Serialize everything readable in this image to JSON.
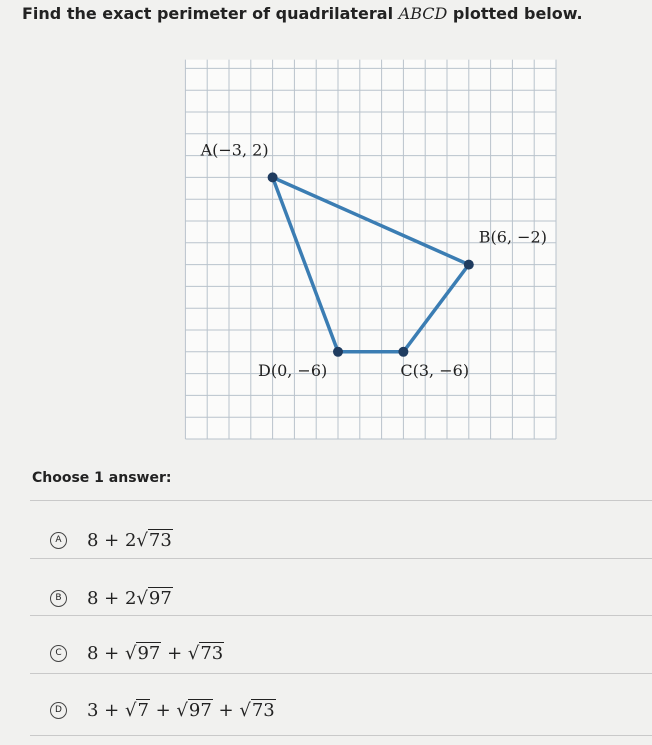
{
  "question": {
    "parts": [
      {
        "text": "Find the exact perimeter of quadrilateral "
      },
      {
        "italic": "ABCD"
      },
      {
        "text": " plotted below."
      }
    ]
  },
  "graph": {
    "points": [
      {
        "label": "A(−3, 2)",
        "x": -3,
        "y": 2
      },
      {
        "label": "B(6, −2)",
        "x": 6,
        "y": -2
      },
      {
        "label": "C(3, −6)",
        "x": 3,
        "y": -6
      },
      {
        "label": "D(0, −6)",
        "x": 0,
        "y": -6
      }
    ]
  },
  "prompt": "Choose 1 answer:",
  "choices": [
    {
      "letter": "A",
      "parts": [
        {
          "text": "8 + 2√"
        },
        {
          "radicand": "73"
        }
      ]
    },
    {
      "letter": "B",
      "parts": [
        {
          "text": "8 + 2√"
        },
        {
          "radicand": "97"
        }
      ]
    },
    {
      "letter": "C",
      "parts": [
        {
          "text": "8 + √"
        },
        {
          "radicand": "97"
        },
        {
          "text": " + √"
        },
        {
          "radicand": "73"
        }
      ]
    },
    {
      "letter": "D",
      "parts": [
        {
          "text": "3 + √"
        },
        {
          "radicand": "7"
        },
        {
          "text": " + √"
        },
        {
          "radicand": "97"
        },
        {
          "text": " + √"
        },
        {
          "radicand": "73"
        }
      ]
    }
  ]
}
